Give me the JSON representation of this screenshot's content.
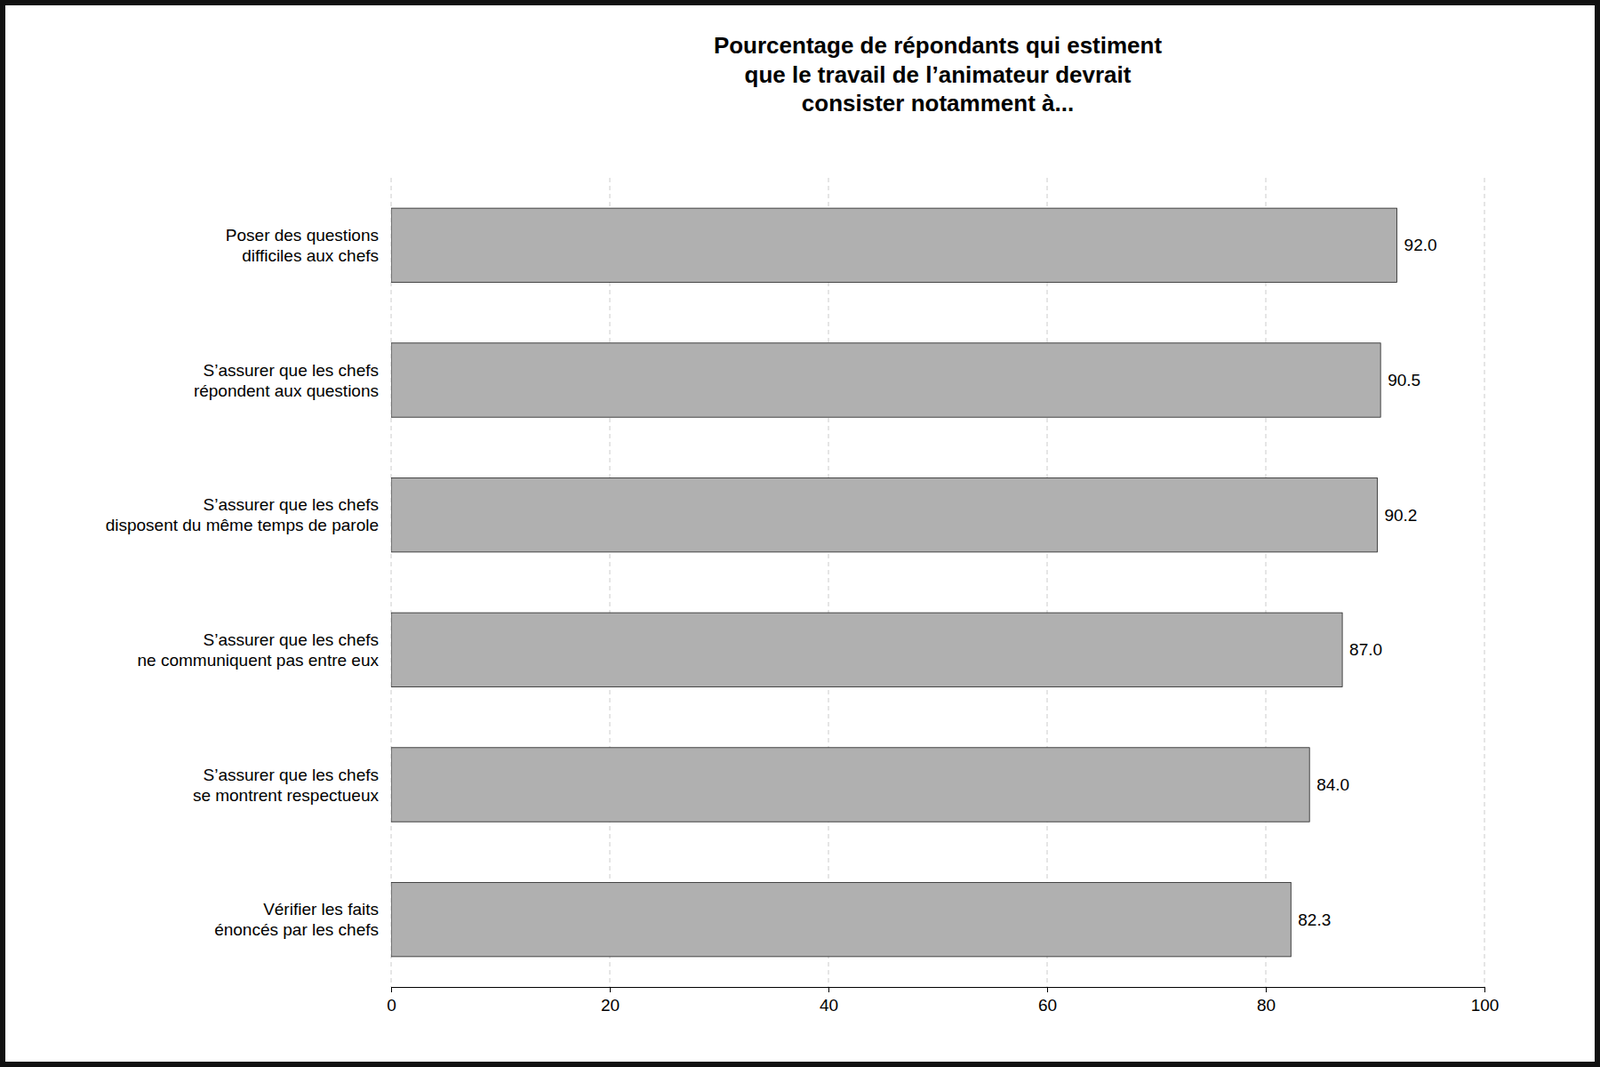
{
  "chart_data": {
    "type": "bar",
    "orientation": "horizontal",
    "title": "Pourcentage de répondants qui estiment\nque le travail de l’animateur devrait\nconsister notamment à...",
    "categories": [
      "Vérifier les faits\nénoncés par les chefs",
      "S’assurer que les chefs\nse montrent respectueux",
      "S’assurer que les chefs\nne communiquent pas entre eux",
      "S’assurer que les chefs\ndisposent du même temps de parole",
      "S’assurer que les chefs\nrépondent aux questions",
      "Poser des questions\ndifficiles aux chefs"
    ],
    "values": [
      82.3,
      84.0,
      87.0,
      90.2,
      90.5,
      92.0
    ],
    "value_labels": [
      "82.3",
      "84.0",
      "87.0",
      "90.2",
      "90.5",
      "92.0"
    ],
    "data_labels": true,
    "color": "#b0b0b0",
    "xlim": [
      0,
      100
    ],
    "xticks": [
      0,
      20,
      40,
      60,
      80,
      100
    ],
    "grid": true
  }
}
